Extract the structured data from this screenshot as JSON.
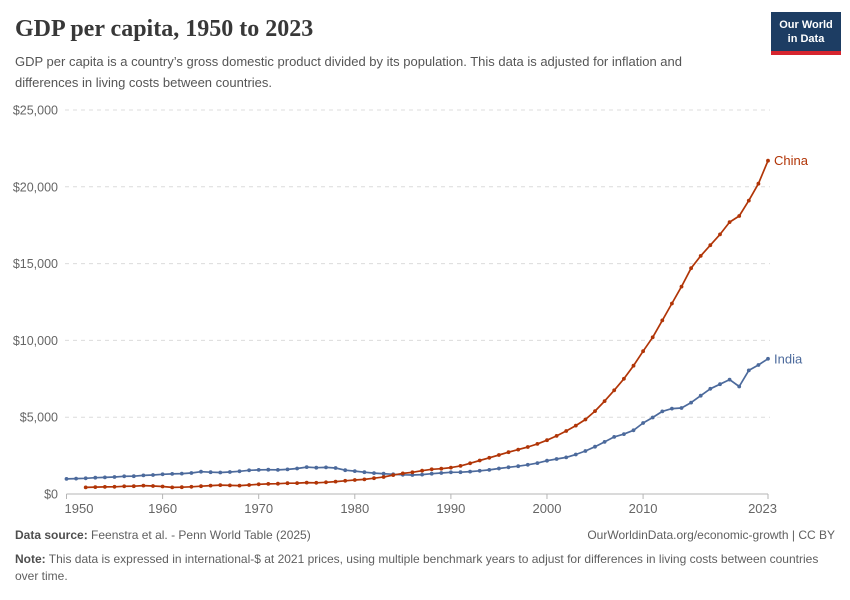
{
  "header": {
    "title": "GDP per capita, 1950 to 2023",
    "subtitle": "GDP per capita is a country’s gross domestic product divided by its population. This data is adjusted for inflation and differences in living costs between countries.",
    "logo_line1": "Our World",
    "logo_line2": "in Data",
    "logo_bg_color": "#1d3d63",
    "logo_accent_color": "#d6252e"
  },
  "footer": {
    "source_label": "Data source:",
    "source_text": "Feenstra et al. - Penn World Table (2025)",
    "attribution": "OurWorldinData.org/economic-growth | CC BY",
    "note_label": "Note:",
    "note_text": "This data is expressed in international-$ at 2021 prices, using multiple benchmark years to adjust for differences in living costs between countries over time."
  },
  "chart_data": {
    "type": "line",
    "title": "GDP per capita, 1950 to 2023",
    "xlabel": "",
    "ylabel": "",
    "xlim": [
      1950,
      2023
    ],
    "ylim": [
      0,
      25000
    ],
    "x_ticks": [
      1950,
      1960,
      1970,
      1980,
      1990,
      2000,
      2010,
      2023
    ],
    "y_ticks": [
      0,
      5000,
      10000,
      15000,
      20000,
      25000
    ],
    "y_tick_prefix": "$",
    "grid": "dashed-horizontal",
    "legend_position": "line-end-labels",
    "marker": "circle",
    "interval": "annual",
    "series": [
      {
        "name": "India",
        "color": "#4C6A9C",
        "start_year": 1950,
        "values": [
          980,
          1000,
          1020,
          1060,
          1080,
          1110,
          1150,
          1160,
          1210,
          1240,
          1280,
          1310,
          1330,
          1370,
          1450,
          1420,
          1400,
          1430,
          1480,
          1540,
          1570,
          1580,
          1570,
          1600,
          1660,
          1750,
          1710,
          1730,
          1690,
          1550,
          1490,
          1420,
          1360,
          1320,
          1280,
          1250,
          1240,
          1260,
          1320,
          1370,
          1410,
          1420,
          1460,
          1510,
          1570,
          1660,
          1740,
          1810,
          1900,
          2010,
          2170,
          2280,
          2380,
          2570,
          2800,
          3080,
          3390,
          3720,
          3900,
          4150,
          4620,
          4980,
          5380,
          5560,
          5600,
          5950,
          6400,
          6850,
          7150,
          7450,
          7000,
          8050,
          8400,
          8800
        ]
      },
      {
        "name": "China",
        "color": "#B13507",
        "start_year": 1952,
        "values": [
          430,
          450,
          460,
          470,
          500,
          510,
          545,
          520,
          490,
          430,
          440,
          470,
          510,
          550,
          580,
          560,
          550,
          585,
          630,
          660,
          670,
          700,
          710,
          740,
          730,
          760,
          810,
          860,
          910,
          950,
          1030,
          1110,
          1230,
          1340,
          1410,
          1520,
          1610,
          1650,
          1720,
          1830,
          2000,
          2180,
          2360,
          2540,
          2720,
          2890,
          3060,
          3260,
          3500,
          3780,
          4100,
          4450,
          4850,
          5400,
          6050,
          6750,
          7500,
          8350,
          9300,
          10200,
          11300,
          12400,
          13500,
          14700,
          15500,
          16200,
          16900,
          17700,
          18100,
          19100,
          20200,
          21700
        ]
      }
    ]
  }
}
